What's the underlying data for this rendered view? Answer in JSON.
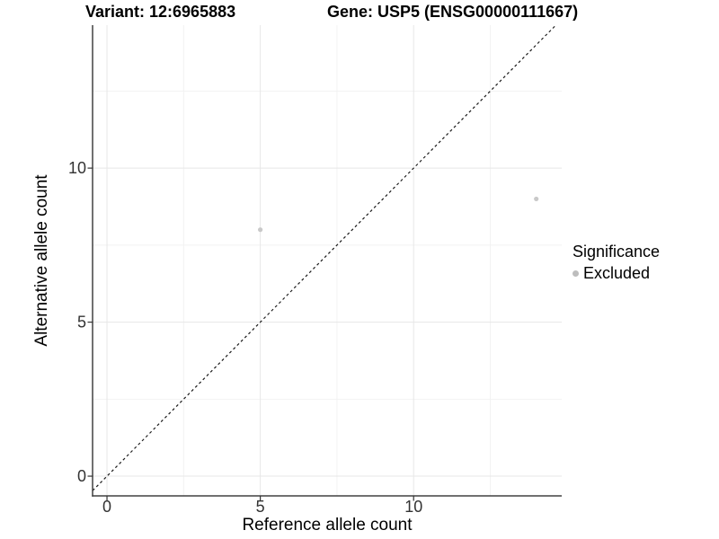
{
  "chart_data": {
    "type": "scatter",
    "titles": {
      "left": "Variant: 12:6965883",
      "right": "Gene: USP5 (ENSG00000111667)"
    },
    "xlabel": "Reference allele count",
    "ylabel": "Alternative allele count",
    "xlim": [
      -0.47,
      14.83
    ],
    "ylim": [
      -0.64,
      14.64
    ],
    "x_major_ticks": [
      0,
      5,
      10
    ],
    "x_minor_ticks": [
      2.5,
      7.5,
      12.5
    ],
    "y_major_ticks": [
      0,
      5,
      10
    ],
    "y_minor_ticks": [
      2.5,
      7.5,
      12.5
    ],
    "grid": true,
    "reference_line": {
      "type": "identity",
      "style": "dashed",
      "color": "#1a1a1a"
    },
    "series": [
      {
        "name": "Excluded",
        "color": "#c9c9c9",
        "points": [
          {
            "x": 5,
            "y": 8
          },
          {
            "x": 14,
            "y": 9
          }
        ]
      }
    ],
    "legend": {
      "title": "Significance",
      "position": "right",
      "entries": [
        {
          "label": "Excluded",
          "color": "#bdbdbd"
        }
      ]
    },
    "colors": {
      "grid_major": "#e7e7e7",
      "grid_minor": "#f2f2f2",
      "axis_line": "#404040",
      "tick_mark": "#333333",
      "tick_label": "#333333"
    }
  }
}
